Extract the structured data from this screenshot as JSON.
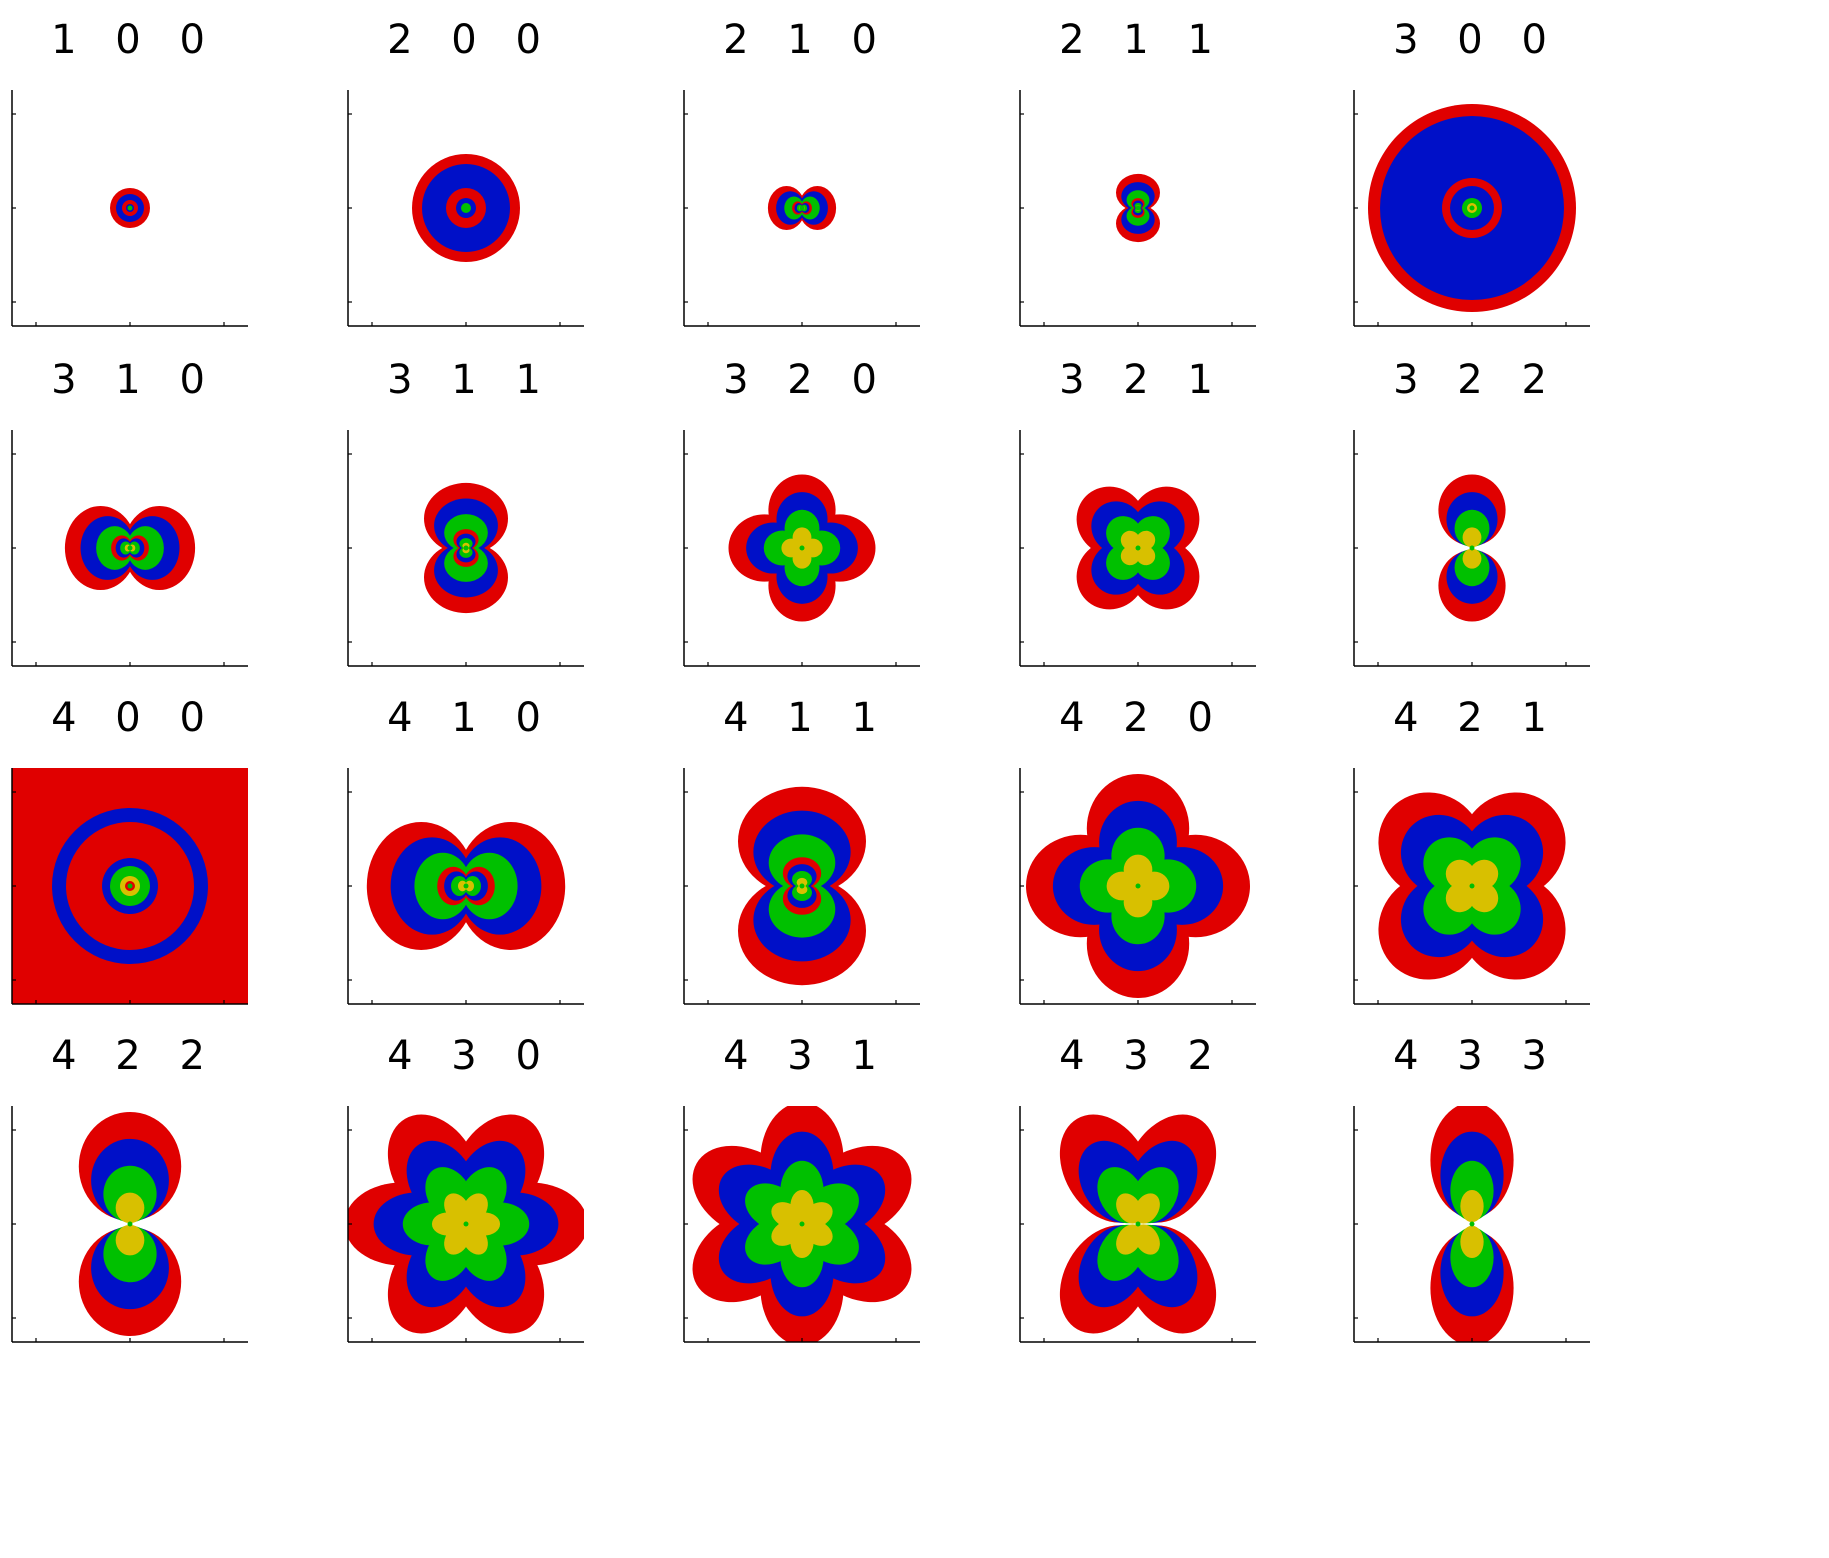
{
  "figure": {
    "layout": {
      "rows": 4,
      "columns": 5
    },
    "colors": {
      "outer_shell": "#e00000",
      "second_shell": "#0010c8",
      "third_shell": "#00c000",
      "inner_shell": "#d8c000",
      "axes": "#000000",
      "background": "#ffffff"
    },
    "panels": [
      {
        "title": "1 0 0",
        "n": 1,
        "l": 0,
        "m": 0
      },
      {
        "title": "2 0 0",
        "n": 2,
        "l": 0,
        "m": 0
      },
      {
        "title": "2 1 0",
        "n": 2,
        "l": 1,
        "m": 0
      },
      {
        "title": "2 1 1",
        "n": 2,
        "l": 1,
        "m": 1
      },
      {
        "title": "3 0 0",
        "n": 3,
        "l": 0,
        "m": 0
      },
      {
        "title": "3 1 0",
        "n": 3,
        "l": 1,
        "m": 0
      },
      {
        "title": "3 1 1",
        "n": 3,
        "l": 1,
        "m": 1
      },
      {
        "title": "3 2 0",
        "n": 3,
        "l": 2,
        "m": 0
      },
      {
        "title": "3 2 1",
        "n": 3,
        "l": 2,
        "m": 1
      },
      {
        "title": "3 2 2",
        "n": 3,
        "l": 2,
        "m": 2
      },
      {
        "title": "4 0 0",
        "n": 4,
        "l": 0,
        "m": 0
      },
      {
        "title": "4 1 0",
        "n": 4,
        "l": 1,
        "m": 0
      },
      {
        "title": "4 1 1",
        "n": 4,
        "l": 1,
        "m": 1
      },
      {
        "title": "4 2 0",
        "n": 4,
        "l": 2,
        "m": 0
      },
      {
        "title": "4 2 1",
        "n": 4,
        "l": 2,
        "m": 1
      },
      {
        "title": "4 2 2",
        "n": 4,
        "l": 2,
        "m": 2
      },
      {
        "title": "4 3 0",
        "n": 4,
        "l": 3,
        "m": 0
      },
      {
        "title": "4 3 1",
        "n": 4,
        "l": 3,
        "m": 1
      },
      {
        "title": "4 3 2",
        "n": 4,
        "l": 3,
        "m": 2
      },
      {
        "title": "4 3 3",
        "n": 4,
        "l": 3,
        "m": 3
      }
    ]
  }
}
